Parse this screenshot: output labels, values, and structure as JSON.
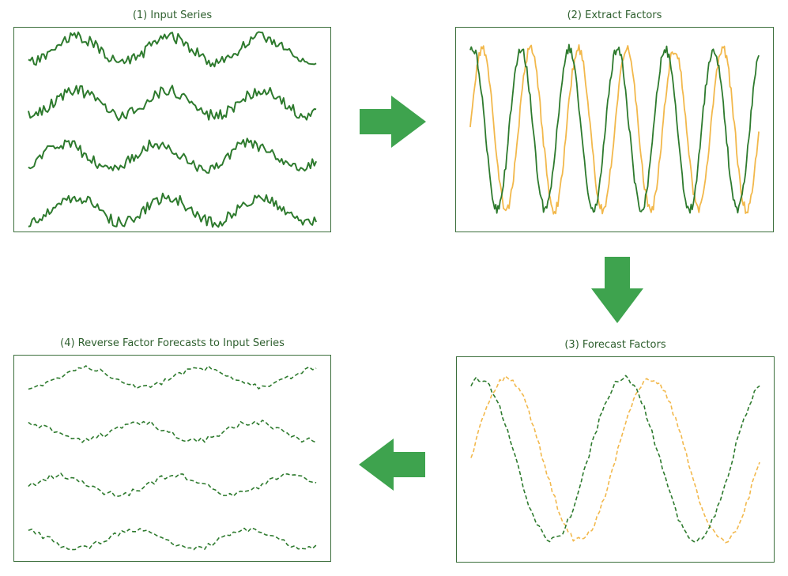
{
  "colors": {
    "green": "#2d7a2d",
    "orange": "#f2b84b",
    "arrow": "#3ea34e",
    "frame": "#3b6e3b"
  },
  "panels": [
    {
      "title": "(1) Input Series",
      "style": "solid",
      "kind": "multi",
      "rows": 4,
      "seed": 11
    },
    {
      "title": "(2) Extract Factors",
      "style": "solid",
      "kind": "factors",
      "cycles": 6,
      "seed": 23
    },
    {
      "title": "(3) Forecast Factors",
      "style": "dashed",
      "kind": "factors",
      "cycles": 2,
      "seed": 37
    },
    {
      "title": "(4) Reverse Factor Forecasts to Input Series",
      "style": "dashed",
      "kind": "multi",
      "rows": 4,
      "seed": 51
    }
  ],
  "arrows": [
    {
      "direction": "right",
      "icon": "arrow-right-icon"
    },
    {
      "direction": "down",
      "icon": "arrow-down-icon"
    },
    {
      "direction": "left",
      "icon": "arrow-left-icon"
    }
  ]
}
